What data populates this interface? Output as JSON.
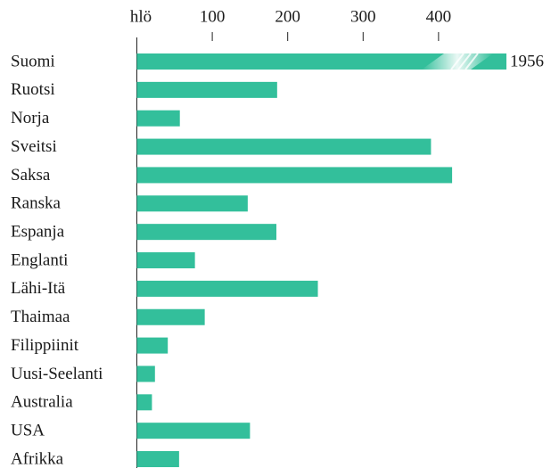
{
  "chart_data": {
    "type": "barh",
    "x_label": "hlö",
    "categories": [
      "Suomi",
      "Ruotsi",
      "Norja",
      "Sveitsi",
      "Saksa",
      "Ranska",
      "Espanja",
      "Englanti",
      "Lähi-Itä",
      "Thaimaa",
      "Filippiinit",
      "Uusi-Seelanti",
      "Australia",
      "USA",
      "Afrikka"
    ],
    "values": [
      1956,
      186,
      57,
      390,
      418,
      147,
      185,
      77,
      240,
      90,
      41,
      24,
      20,
      150,
      56
    ],
    "color": "#33bf9b",
    "axis_break": true,
    "xlim": [
      0,
      490
    ],
    "xticks": [
      100,
      200,
      300,
      400
    ]
  }
}
